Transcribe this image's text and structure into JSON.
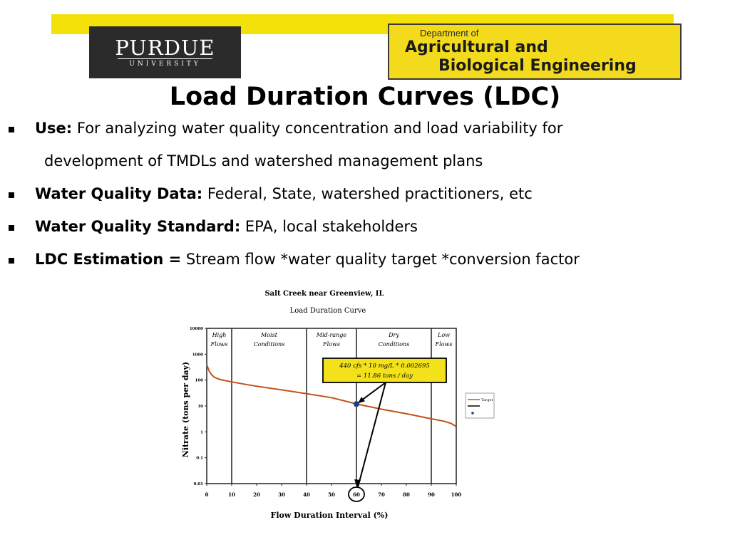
{
  "header": {
    "logo_left": {
      "name": "PURDUE",
      "sub": "UNIVERSITY"
    },
    "logo_right": {
      "line0": "Department of",
      "line1": "Agricultural and",
      "line2": "Biological Engineering"
    },
    "colors": {
      "accent_yellow": "#f5e10a",
      "logo_dark": "#2b2b2b"
    }
  },
  "title": "Load Duration Curves (LDC)",
  "bullets": [
    {
      "lead": "Use:",
      "text": " For analyzing water quality concentration and load variability for",
      "continuation": "development of TMDLs and watershed management plans"
    },
    {
      "lead": "Water Quality Data:",
      "text": " Federal, State, watershed practitioners, etc"
    },
    {
      "lead": "Water Quality Standard:",
      "text": " EPA, local stakeholders"
    },
    {
      "lead": "LDC Estimation =",
      "text": " Stream flow *water quality target *conversion factor"
    }
  ],
  "chart_data": {
    "type": "line",
    "title": "Salt Creek near Greenview, IL",
    "subtitle": "Load Duration Curve",
    "xlabel": "Flow Duration Interval (%)",
    "ylabel": "Nitrate (tons per day)",
    "xlim": [
      0,
      100
    ],
    "ylim": [
      0.01,
      10000
    ],
    "yscale": "log",
    "x_ticks": [
      "0",
      "10",
      "20",
      "30",
      "40",
      "50",
      "60",
      "70",
      "80",
      "90",
      "100"
    ],
    "y_ticks": [
      "0.01",
      "0.1",
      "1",
      "10",
      "100",
      "1000",
      "10000"
    ],
    "zones": [
      {
        "label1": "High",
        "label2": "Flows",
        "range": [
          0,
          10
        ]
      },
      {
        "label1": "Moist",
        "label2": "Conditions",
        "range": [
          10,
          40
        ]
      },
      {
        "label1": "Mid-range",
        "label2": "Flows",
        "range": [
          40,
          60
        ]
      },
      {
        "label1": "Dry",
        "label2": "Conditions",
        "range": [
          60,
          90
        ]
      },
      {
        "label1": "Low",
        "label2": "Flows",
        "range": [
          90,
          100
        ]
      }
    ],
    "series": [
      {
        "name": "Target",
        "color": "#c0531a",
        "x": [
          0,
          1,
          2,
          3,
          5,
          7,
          10,
          15,
          20,
          30,
          40,
          50,
          60,
          70,
          80,
          90,
          95,
          98,
          100
        ],
        "y": [
          400,
          220,
          160,
          130,
          108,
          97,
          85,
          70,
          58,
          42,
          30,
          21,
          12,
          7.5,
          5,
          3.2,
          2.6,
          2.1,
          1.6
        ]
      }
    ],
    "highlight_point": {
      "x": 60,
      "y": 11.86,
      "color": "#1f3b8f"
    },
    "annotation": {
      "line1": "440 cfs  *  10 mg/L  *  0.002695",
      "line2": "=  11.86 tons / day",
      "color": "#f3e21a"
    },
    "legend": {
      "placement": "right",
      "entries": [
        "Target"
      ]
    },
    "grid": false
  }
}
